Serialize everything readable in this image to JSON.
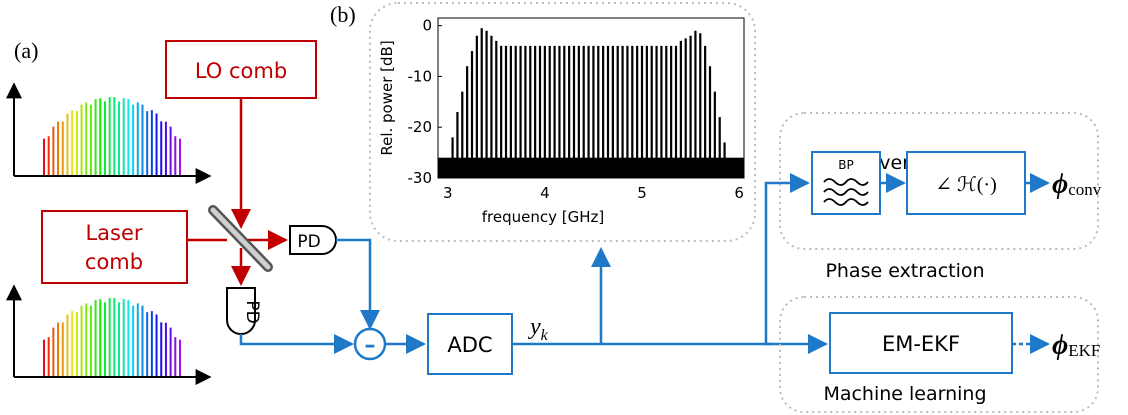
{
  "panel_a_label": "(a)",
  "panel_b_label": "(b)",
  "lo_comb": "LO comb",
  "laser_comb_line1": "Laser",
  "laser_comb_line2": "comb",
  "pd_label": "PD",
  "subtract_symbol": "–",
  "adc": "ADC",
  "signal_y": "y",
  "signal_k": "k",
  "conventional": "Conventional",
  "bp": "BP",
  "hilbert_label": "∠ ℋ(·)",
  "phi_conv": "ϕ",
  "phi_conv_sub": "conv",
  "phase_extraction": "Phase extraction",
  "em_ekf": "EM-EKF",
  "phi_ekf": "ϕ",
  "phi_ekf_sub": "EKF",
  "machine_learning": "Machine learning",
  "colors": {
    "red": "#c00000",
    "blue": "#1f78c8",
    "gray": "#bbbbbb"
  },
  "chart_data": {
    "type": "bar",
    "xlabel": "frequency [GHz]",
    "ylabel": "Rel. power [dB]",
    "xlim": [
      2.9,
      6.05
    ],
    "ylim": [
      -30,
      1.5
    ],
    "xticks": [
      "3",
      "4",
      "5",
      "6"
    ],
    "yticks": [
      "0",
      "-10",
      "-20",
      "-30"
    ],
    "noise_floor": -26,
    "line_spacing_ghz": 0.05,
    "comb_lines": [
      {
        "f": 3.05,
        "p": -22
      },
      {
        "f": 3.1,
        "p": -17
      },
      {
        "f": 3.15,
        "p": -13
      },
      {
        "f": 3.2,
        "p": -8
      },
      {
        "f": 3.25,
        "p": -5
      },
      {
        "f": 3.3,
        "p": -2
      },
      {
        "f": 3.35,
        "p": -0.5
      },
      {
        "f": 3.4,
        "p": -1
      },
      {
        "f": 3.45,
        "p": -2
      },
      {
        "f": 3.5,
        "p": -3
      },
      {
        "f": 3.55,
        "p": -4
      },
      {
        "f": 3.6,
        "p": -4
      },
      {
        "f": 3.65,
        "p": -4
      },
      {
        "f": 3.7,
        "p": -4
      },
      {
        "f": 3.75,
        "p": -4
      },
      {
        "f": 3.8,
        "p": -4
      },
      {
        "f": 3.85,
        "p": -4
      },
      {
        "f": 3.9,
        "p": -4
      },
      {
        "f": 3.95,
        "p": -4
      },
      {
        "f": 4.0,
        "p": -4
      },
      {
        "f": 4.05,
        "p": -4
      },
      {
        "f": 4.1,
        "p": -4
      },
      {
        "f": 4.15,
        "p": -4
      },
      {
        "f": 4.2,
        "p": -4
      },
      {
        "f": 4.25,
        "p": -4
      },
      {
        "f": 4.3,
        "p": -4
      },
      {
        "f": 4.35,
        "p": -4
      },
      {
        "f": 4.4,
        "p": -4
      },
      {
        "f": 4.45,
        "p": -4
      },
      {
        "f": 4.5,
        "p": -4
      },
      {
        "f": 4.55,
        "p": -4
      },
      {
        "f": 4.6,
        "p": -4
      },
      {
        "f": 4.65,
        "p": -4
      },
      {
        "f": 4.7,
        "p": -4
      },
      {
        "f": 4.75,
        "p": -4
      },
      {
        "f": 4.8,
        "p": -4
      },
      {
        "f": 4.85,
        "p": -4
      },
      {
        "f": 4.9,
        "p": -4
      },
      {
        "f": 4.95,
        "p": -4
      },
      {
        "f": 5.0,
        "p": -4
      },
      {
        "f": 5.05,
        "p": -4
      },
      {
        "f": 5.1,
        "p": -4
      },
      {
        "f": 5.15,
        "p": -4
      },
      {
        "f": 5.2,
        "p": -4
      },
      {
        "f": 5.25,
        "p": -4
      },
      {
        "f": 5.3,
        "p": -4
      },
      {
        "f": 5.35,
        "p": -4
      },
      {
        "f": 5.4,
        "p": -3
      },
      {
        "f": 5.45,
        "p": -2.5
      },
      {
        "f": 5.5,
        "p": -2
      },
      {
        "f": 5.55,
        "p": -1
      },
      {
        "f": 5.6,
        "p": -1.5
      },
      {
        "f": 5.65,
        "p": -4
      },
      {
        "f": 5.7,
        "p": -8
      },
      {
        "f": 5.75,
        "p": -13
      },
      {
        "f": 5.8,
        "p": -18
      },
      {
        "f": 5.85,
        "p": -23
      }
    ]
  }
}
